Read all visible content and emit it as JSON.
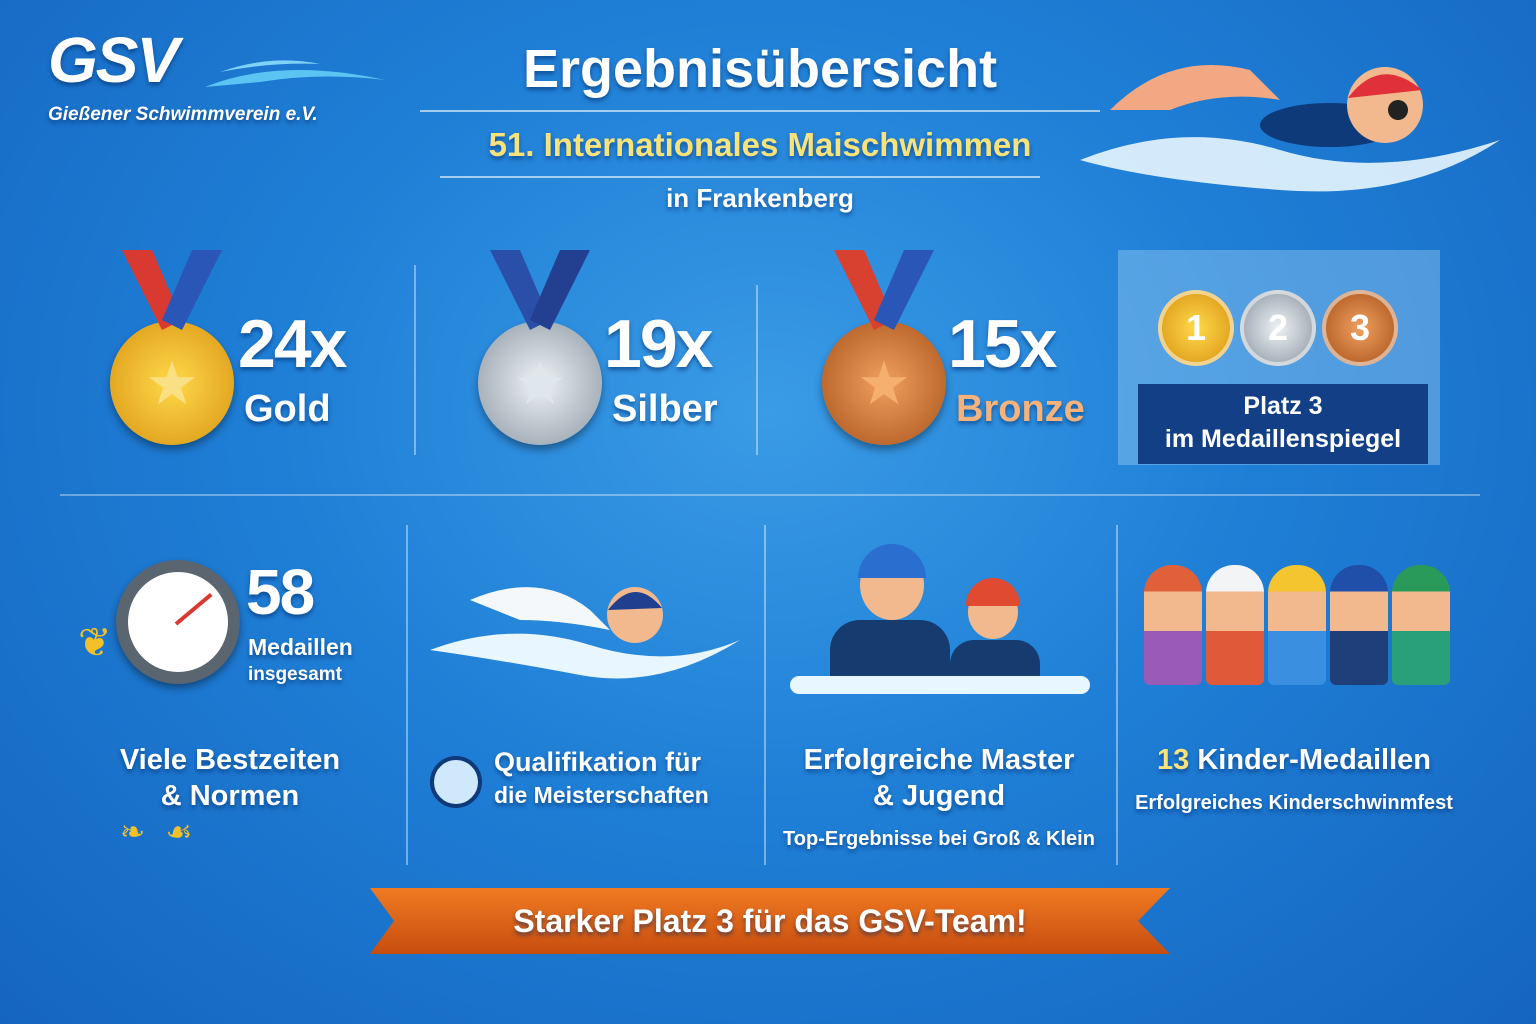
{
  "logo": {
    "name": "GSV",
    "subtitle": "Gießener Schwimmverein e.V."
  },
  "header": {
    "title": "Ergebnisübersicht",
    "subtitle": "51. Internationales Maischwimmen",
    "location": "in Frankenberg"
  },
  "medals": [
    {
      "count": "24x",
      "label": "Gold",
      "color": "#f2b421"
    },
    {
      "count": "19x",
      "label": "Silber",
      "color": "#b9c3cc"
    },
    {
      "count": "15x",
      "label": "Bronze",
      "color": "#c8702d"
    }
  ],
  "ranking": {
    "places": [
      "1",
      "2",
      "3"
    ],
    "line1": "Platz 3",
    "line2": "im Medaillenspiegel"
  },
  "stats": {
    "total": "58",
    "total_label1": "Medaillen",
    "total_label2": "insgesamt",
    "bestzeiten1": "Viele Bestzeiten",
    "bestzeiten2": "& Normen"
  },
  "qualification": {
    "line1": "Qualifikation für",
    "line2": "die Meisterschaften"
  },
  "master": {
    "line1": "Erfolgreiche Master",
    "line2": "& Jugend",
    "sub": "Top-Ergebnisse bei Groß & Klein"
  },
  "kids": {
    "count": "13",
    "label": "Kinder-Medaillen",
    "sub": "Erfolgreiches Kinderschwinmfest"
  },
  "banner": "Starker Platz 3 für das GSV-Team!"
}
